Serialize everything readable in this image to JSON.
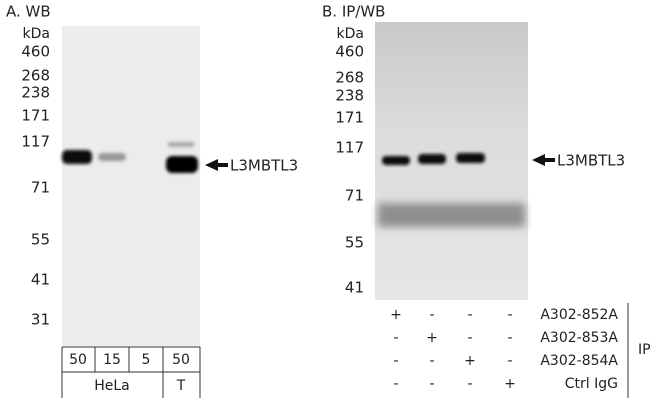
{
  "panel_a": {
    "title": "A. WB",
    "unit": "kDa",
    "markers": [
      460,
      268,
      238,
      171,
      117,
      71,
      55,
      41,
      31
    ],
    "band_label": "L3MBTL3",
    "loads": [
      50,
      15,
      5,
      50
    ],
    "samples": [
      "HeLa",
      "T"
    ]
  },
  "panel_b": {
    "title": "B. IP/WB",
    "unit": "kDa",
    "markers": [
      460,
      268,
      238,
      171,
      117,
      71,
      55,
      41
    ],
    "band_label": "L3MBTL3",
    "antibodies": [
      {
        "name": "A302-852A",
        "signs": [
          "+",
          "-",
          "-",
          "-"
        ]
      },
      {
        "name": "A302-853A",
        "signs": [
          "-",
          "+",
          "-",
          "-"
        ]
      },
      {
        "name": "A302-854A",
        "signs": [
          "-",
          "-",
          "+",
          "-"
        ]
      },
      {
        "name": "Ctrl IgG",
        "signs": [
          "-",
          "-",
          "-",
          "+"
        ]
      }
    ],
    "group_label": "IP"
  }
}
